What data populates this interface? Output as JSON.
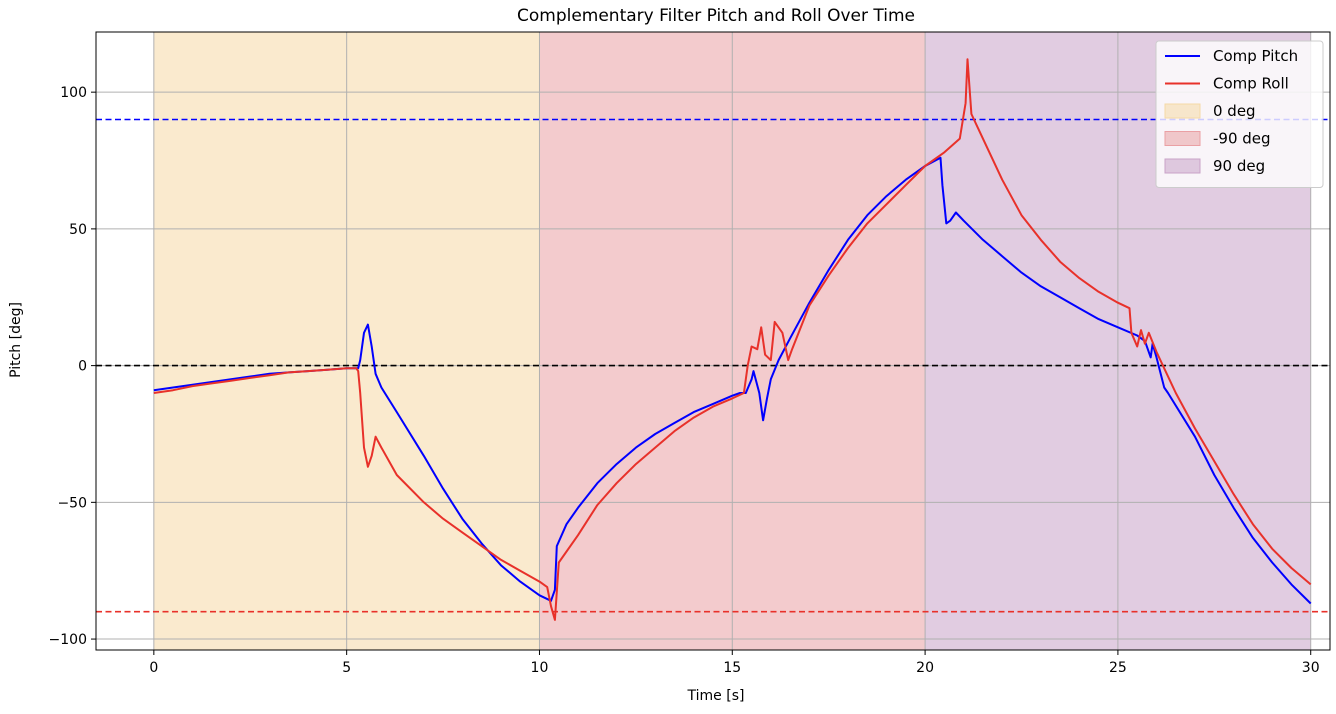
{
  "chart_data": {
    "type": "line",
    "title": "Complementary Filter Pitch and Roll Over Time",
    "xlabel": "Time [s]",
    "ylabel": "Pitch [deg]",
    "xlim": [
      -1.5,
      30.5
    ],
    "ylim": [
      -104,
      122
    ],
    "xticks": [
      0,
      5,
      10,
      15,
      20,
      25,
      30
    ],
    "yticks": [
      -100,
      -50,
      0,
      50,
      100
    ],
    "ytick_labels": [
      "−100",
      "−50",
      "0",
      "50",
      "100"
    ],
    "grid": true,
    "legend_position": "top-right",
    "shaded_regions": [
      {
        "name": "0 deg",
        "x0": 0,
        "x1": 10,
        "color": "#f5d9a6",
        "alpha": 0.55
      },
      {
        "name": "-90 deg",
        "x0": 10,
        "x1": 20,
        "color": "#eaa0a4",
        "alpha": 0.55
      },
      {
        "name": "90 deg",
        "x0": 20,
        "x1": 30,
        "color": "#c9a2c8",
        "alpha": 0.55
      }
    ],
    "reference_lines": [
      {
        "y": 90,
        "color": "#0000ff",
        "style": "dashed"
      },
      {
        "y": 0,
        "color": "#000000",
        "style": "dashed"
      },
      {
        "y": -90,
        "color": "#e8312a",
        "style": "dashed"
      }
    ],
    "series": [
      {
        "name": "Comp Pitch",
        "color": "#0000ff",
        "points": [
          [
            0,
            -9
          ],
          [
            0.5,
            -8
          ],
          [
            1,
            -7
          ],
          [
            1.5,
            -6
          ],
          [
            2,
            -5
          ],
          [
            2.5,
            -4
          ],
          [
            3,
            -3
          ],
          [
            3.5,
            -2.5
          ],
          [
            4,
            -2
          ],
          [
            4.5,
            -1.5
          ],
          [
            5,
            -1
          ],
          [
            5.3,
            -1
          ],
          [
            5.35,
            2
          ],
          [
            5.45,
            12
          ],
          [
            5.55,
            15
          ],
          [
            5.65,
            7
          ],
          [
            5.75,
            -3
          ],
          [
            5.9,
            -8
          ],
          [
            6.3,
            -17
          ],
          [
            7,
            -33
          ],
          [
            7.5,
            -45
          ],
          [
            8,
            -56
          ],
          [
            8.5,
            -65
          ],
          [
            9,
            -73
          ],
          [
            9.5,
            -79
          ],
          [
            10,
            -84
          ],
          [
            10.3,
            -86
          ],
          [
            10.4,
            -82
          ],
          [
            10.45,
            -66
          ],
          [
            10.7,
            -58
          ],
          [
            11,
            -52
          ],
          [
            11.5,
            -43
          ],
          [
            12,
            -36
          ],
          [
            12.5,
            -30
          ],
          [
            13,
            -25
          ],
          [
            13.5,
            -21
          ],
          [
            14,
            -17
          ],
          [
            14.5,
            -14
          ],
          [
            15,
            -11
          ],
          [
            15.2,
            -10
          ],
          [
            15.35,
            -10
          ],
          [
            15.5,
            -5
          ],
          [
            15.55,
            -2
          ],
          [
            15.7,
            -10
          ],
          [
            15.8,
            -20
          ],
          [
            15.9,
            -12
          ],
          [
            16,
            -5
          ],
          [
            16.2,
            2
          ],
          [
            16.5,
            10
          ],
          [
            17,
            23
          ],
          [
            17.5,
            35
          ],
          [
            18,
            46
          ],
          [
            18.5,
            55
          ],
          [
            19,
            62
          ],
          [
            19.5,
            68
          ],
          [
            20,
            73
          ],
          [
            20.4,
            76
          ],
          [
            20.45,
            66
          ],
          [
            20.55,
            52
          ],
          [
            20.65,
            53
          ],
          [
            20.8,
            56
          ],
          [
            21,
            53
          ],
          [
            21.5,
            46
          ],
          [
            22,
            40
          ],
          [
            22.5,
            34
          ],
          [
            23,
            29
          ],
          [
            23.5,
            25
          ],
          [
            24,
            21
          ],
          [
            24.5,
            17
          ],
          [
            25,
            14
          ],
          [
            25.5,
            11
          ],
          [
            25.7,
            9
          ],
          [
            25.85,
            3
          ],
          [
            25.9,
            8
          ],
          [
            26,
            3
          ],
          [
            26.2,
            -8
          ],
          [
            26.3,
            -10
          ],
          [
            27,
            -26
          ],
          [
            27.5,
            -40
          ],
          [
            28,
            -52
          ],
          [
            28.5,
            -63
          ],
          [
            29,
            -72
          ],
          [
            29.5,
            -80
          ],
          [
            30,
            -87
          ]
        ]
      },
      {
        "name": "Comp Roll",
        "color": "#e8312a",
        "points": [
          [
            0,
            -10
          ],
          [
            0.5,
            -9
          ],
          [
            1,
            -7.5
          ],
          [
            1.5,
            -6.5
          ],
          [
            2,
            -5.5
          ],
          [
            2.5,
            -4.5
          ],
          [
            3,
            -3.5
          ],
          [
            3.5,
            -2.5
          ],
          [
            4,
            -2
          ],
          [
            4.5,
            -1.5
          ],
          [
            5,
            -1
          ],
          [
            5.25,
            -1
          ],
          [
            5.3,
            -2
          ],
          [
            5.35,
            -10
          ],
          [
            5.45,
            -30
          ],
          [
            5.55,
            -37
          ],
          [
            5.65,
            -33
          ],
          [
            5.75,
            -26
          ],
          [
            5.9,
            -30
          ],
          [
            6.3,
            -40
          ],
          [
            7,
            -50
          ],
          [
            7.5,
            -56
          ],
          [
            8,
            -61
          ],
          [
            8.5,
            -66
          ],
          [
            9,
            -71
          ],
          [
            9.5,
            -75
          ],
          [
            10,
            -79
          ],
          [
            10.2,
            -81
          ],
          [
            10.3,
            -88
          ],
          [
            10.4,
            -93
          ],
          [
            10.5,
            -72
          ],
          [
            11,
            -62
          ],
          [
            11.5,
            -51
          ],
          [
            12,
            -43
          ],
          [
            12.5,
            -36
          ],
          [
            13,
            -30
          ],
          [
            13.5,
            -24
          ],
          [
            14,
            -19
          ],
          [
            14.5,
            -15
          ],
          [
            15,
            -12
          ],
          [
            15.3,
            -10
          ],
          [
            15.4,
            0
          ],
          [
            15.5,
            7
          ],
          [
            15.65,
            6
          ],
          [
            15.75,
            14
          ],
          [
            15.85,
            4
          ],
          [
            16,
            2
          ],
          [
            16.1,
            16
          ],
          [
            16.3,
            12
          ],
          [
            16.45,
            2
          ],
          [
            16.55,
            6
          ],
          [
            17,
            22
          ],
          [
            17.5,
            33
          ],
          [
            18,
            43
          ],
          [
            18.5,
            52
          ],
          [
            19,
            59
          ],
          [
            19.5,
            66
          ],
          [
            20,
            73
          ],
          [
            20.5,
            78
          ],
          [
            20.9,
            83
          ],
          [
            21.05,
            96
          ],
          [
            21.1,
            112
          ],
          [
            21.2,
            92
          ],
          [
            21.5,
            83
          ],
          [
            22,
            68
          ],
          [
            22.5,
            55
          ],
          [
            23,
            46
          ],
          [
            23.5,
            38
          ],
          [
            24,
            32
          ],
          [
            24.5,
            27
          ],
          [
            25,
            23
          ],
          [
            25.3,
            21
          ],
          [
            25.35,
            12
          ],
          [
            25.5,
            7
          ],
          [
            25.6,
            13
          ],
          [
            25.7,
            8
          ],
          [
            25.8,
            12
          ],
          [
            26,
            5
          ],
          [
            26.5,
            -10
          ],
          [
            27,
            -23
          ],
          [
            27.5,
            -35
          ],
          [
            28,
            -47
          ],
          [
            28.5,
            -58
          ],
          [
            29,
            -67
          ],
          [
            29.5,
            -74
          ],
          [
            30,
            -80
          ]
        ]
      }
    ]
  }
}
